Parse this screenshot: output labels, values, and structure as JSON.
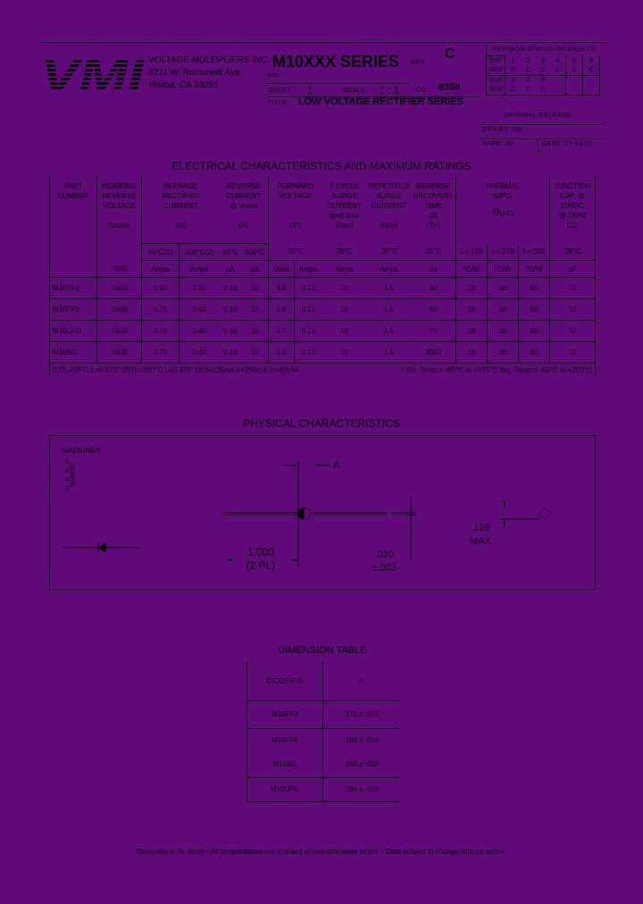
{
  "header": {
    "company": [
      "VOLTAGE MULTIPLIERS INC.",
      "8711 W. Roosevelt Ave.",
      "Visalia, CA 93291"
    ],
    "logo_text": "VMI",
    "series": "M10XXX SERIES",
    "rev_label": "REV",
    "rev_value": "C",
    "pn_label": "P/N",
    "sheet_label": "SHEET :",
    "sheet_value": "1",
    "scale_label": "SCALE",
    "scale_value": "1 : 1",
    "co_label": "CO:",
    "co_value": "8358",
    "title_label": "TITLE",
    "title_value": "LOW VOLTAGE RECTIFIER SERIES"
  },
  "revision_status": {
    "heading": "REVISION STATUS OF SHEETS",
    "rows": [
      {
        "label": "SHT",
        "cells": [
          "1",
          "2",
          "3",
          "4",
          "5",
          "6"
        ]
      },
      {
        "label": "REV",
        "cells": [
          "C",
          "C",
          "C",
          "C",
          "C",
          "C"
        ]
      },
      {
        "label": "SHT",
        "cells": [
          "7",
          "8",
          "9",
          "",
          "",
          ""
        ]
      },
      {
        "label": "REV",
        "cells": [
          "C",
          "C",
          "C",
          "",
          "",
          ""
        ]
      }
    ]
  },
  "release": {
    "heading": "ORIGINAL RELEASE",
    "drn": "DRN BY:  DB",
    "appr": "APPR:  SP",
    "date": "DATE: 01-15-01"
  },
  "electrical": {
    "title": "ELECTRICAL CHARACTERISTICS AND MAXIMUM RATINGS",
    "headers": {
      "part": "PART\nNUMBER",
      "working": "WORKING\nREVERSE\nVOLTAGE\n\n(Vrwm)",
      "avg": "AVERAGE\nRECTIFIED\nCURRENT\n\n(Io)",
      "rev": "REVERSE\nCURRENT\n@ Vrwm\n\n(Ir)",
      "fwd": "FORWARD\nVOLTAGE\n\n\n(Vf)",
      "surge": "1 CYCLE\nSURGE\nCURRENT\ntp=8.3ms\n(Ifsm)",
      "rep": "REPETITIVE\nSURGE\nCURRENT\n\n(Ifrm)",
      "rrt": "REVERSE\nRECOVERY\nTIME\n(3)\n(Trr)",
      "thermal": "THERMAL\nIMPD.",
      "theta": "Θ",
      "theta_sub": "(J-C)",
      "junction": "JUNCTION\nCAP. @\n50VDC\n@ 1KHZ\n(Cj)"
    },
    "conditions": [
      "55°C(1)",
      "100°C(2)",
      "25°C",
      "100°C",
      "25°C",
      "25°C",
      "25°C",
      "25°C",
      "L=.125",
      "L=.375",
      "L=.500",
      "25°C"
    ],
    "units": [
      "Volts",
      "Amps",
      "Amps",
      "µA",
      "µA",
      "Volts",
      "Amps",
      "Amps",
      "Amps",
      "ns",
      "°C/W",
      "°C/W",
      "°C/W",
      "pF"
    ],
    "rows": [
      [
        "M10FF3",
        "1000",
        "0.50",
        "0.20",
        "0.10",
        "10",
        "4.0",
        "0.10",
        "10",
        "1.5",
        "30",
        "18",
        "30",
        "50",
        "10"
      ],
      [
        "M10FF5",
        "1000",
        "0.75",
        "0.40",
        "0.10",
        "10",
        "1.9",
        "0.10",
        "10",
        "1.5",
        "50",
        "18",
        "30",
        "50",
        "10"
      ],
      [
        "M10UFG",
        "1000",
        "0.75",
        "0.40",
        "0.10",
        "10",
        "1.7",
        "0.10",
        "10",
        "1.5",
        "70",
        "18",
        "30",
        "50",
        "10"
      ],
      [
        "M10SG",
        "1000",
        "0.75",
        "0.40",
        "0.10",
        "10",
        "1.3",
        "0.10",
        "10",
        "1.5",
        "3000",
        "18",
        "30",
        "50",
        "10"
      ]
    ],
    "footnote_left": "(1)TL=55°C L=0.375\" (2)TL=100°C L=0.375\" (3)If=125mA Ir=250mA Irr=63mA",
    "footnote_right": "* Op. Temp.= -65°C to +175°C Stg. Temp.= -65°C to +200°C"
  },
  "physical": {
    "title": "PHYSICAL CHARACTERISTICS",
    "markings": "MARKINGS",
    "band": [
      "B",
      "A",
      "N",
      "D"
    ],
    "marking_text": "M10XXX",
    "dim_a": "A",
    "lead_length": "1.000",
    "lead_length_note": "(2 PL)",
    "lead_dia": ".020",
    "lead_dia_tol": "±.003",
    "body_dia": ".125",
    "body_dia_note": "MAX"
  },
  "dimension_table": {
    "title": "DIMENSION TABLE",
    "headers": [
      "DIODE P/N",
      "A"
    ],
    "rows": [
      [
        "M10FF3",
        ".170 ± .015"
      ],
      [
        "M10FF5",
        ".180 ± .015"
      ],
      [
        "M10SG",
        ".180 ± .015"
      ],
      [
        "M10UFG",
        ".160 ± .015"
      ]
    ]
  },
  "footer": "Dimensions: In. (mm) • All temperatures are ambient unless otherwise noted. • Data subject to change without notice.",
  "colors": {
    "background": "#5f0a78",
    "ink": "#000000"
  }
}
